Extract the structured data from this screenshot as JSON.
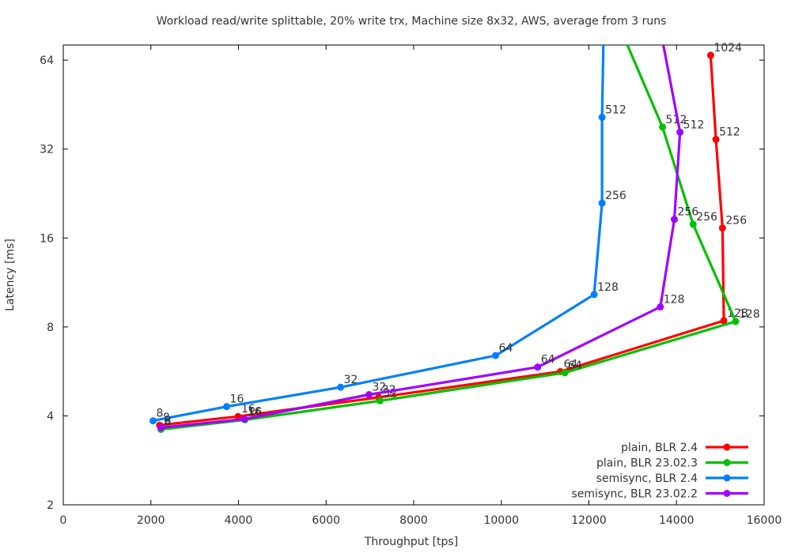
{
  "chart_data": {
    "type": "line",
    "title": "Workload read/write splittable, 20% write trx, Machine size 8x32, AWS, average from 3 runs",
    "xlabel": "Throughput [tps]",
    "ylabel": "Latency [ms]",
    "xlim": [
      0,
      16000
    ],
    "ylim": [
      2,
      72
    ],
    "y_scale": "log2",
    "xticks": [
      "0",
      "2000",
      "4000",
      "6000",
      "8000",
      "10000",
      "12000",
      "14000",
      "16000"
    ],
    "yticks": [
      "2",
      "4",
      "8",
      "16",
      "32",
      "64"
    ],
    "legend_position": "bottom-right",
    "series": [
      {
        "name": "plain, BLR 2.4",
        "color": "#ff0000",
        "points": [
          {
            "x": 2200,
            "y": 3.72,
            "label": "8"
          },
          {
            "x": 3990,
            "y": 3.98,
            "label": "16"
          },
          {
            "x": 7200,
            "y": 4.62,
            "label": "32"
          },
          {
            "x": 11350,
            "y": 5.65,
            "label": "64"
          },
          {
            "x": 15080,
            "y": 8.4,
            "label": "128"
          },
          {
            "x": 15050,
            "y": 17.3,
            "label": "256"
          },
          {
            "x": 14900,
            "y": 34.5,
            "label": "512"
          },
          {
            "x": 14780,
            "y": 66.5,
            "label": "1024"
          }
        ]
      },
      {
        "name": "plain, BLR 23.02.3",
        "color": "#00c000",
        "points": [
          {
            "x": 2230,
            "y": 3.6,
            "label": "8"
          },
          {
            "x": 4150,
            "y": 3.88,
            "label": "16"
          },
          {
            "x": 7230,
            "y": 4.5,
            "label": "32"
          },
          {
            "x": 11450,
            "y": 5.6,
            "label": "64"
          },
          {
            "x": 15350,
            "y": 8.35,
            "label": "128"
          },
          {
            "x": 14380,
            "y": 17.8,
            "label": "256"
          },
          {
            "x": 13680,
            "y": 38.0,
            "label": "512"
          },
          {
            "x": 12880,
            "y": 72.0,
            "label": ""
          }
        ]
      },
      {
        "name": "semisync, BLR 2.4",
        "color": "#0080ff",
        "points": [
          {
            "x": 2050,
            "y": 3.85,
            "label": "8"
          },
          {
            "x": 3730,
            "y": 4.3,
            "label": "16"
          },
          {
            "x": 6330,
            "y": 5.0,
            "label": "32"
          },
          {
            "x": 9870,
            "y": 6.4,
            "label": "64"
          },
          {
            "x": 12120,
            "y": 10.3,
            "label": "128"
          },
          {
            "x": 12300,
            "y": 21.0,
            "label": "256"
          },
          {
            "x": 12300,
            "y": 41.0,
            "label": "512"
          },
          {
            "x": 12330,
            "y": 72.0,
            "label": ""
          }
        ]
      },
      {
        "name": "semisync, BLR 23.02.2",
        "color": "#a000ff",
        "points": [
          {
            "x": 2230,
            "y": 3.65,
            "label": "8"
          },
          {
            "x": 4130,
            "y": 3.9,
            "label": "16"
          },
          {
            "x": 6980,
            "y": 4.72,
            "label": "32"
          },
          {
            "x": 10830,
            "y": 5.85,
            "label": "64"
          },
          {
            "x": 13630,
            "y": 9.35,
            "label": "128"
          },
          {
            "x": 13950,
            "y": 18.5,
            "label": "256"
          },
          {
            "x": 14080,
            "y": 36.5,
            "label": "512"
          },
          {
            "x": 13700,
            "y": 72.0,
            "label": ""
          }
        ]
      }
    ]
  }
}
